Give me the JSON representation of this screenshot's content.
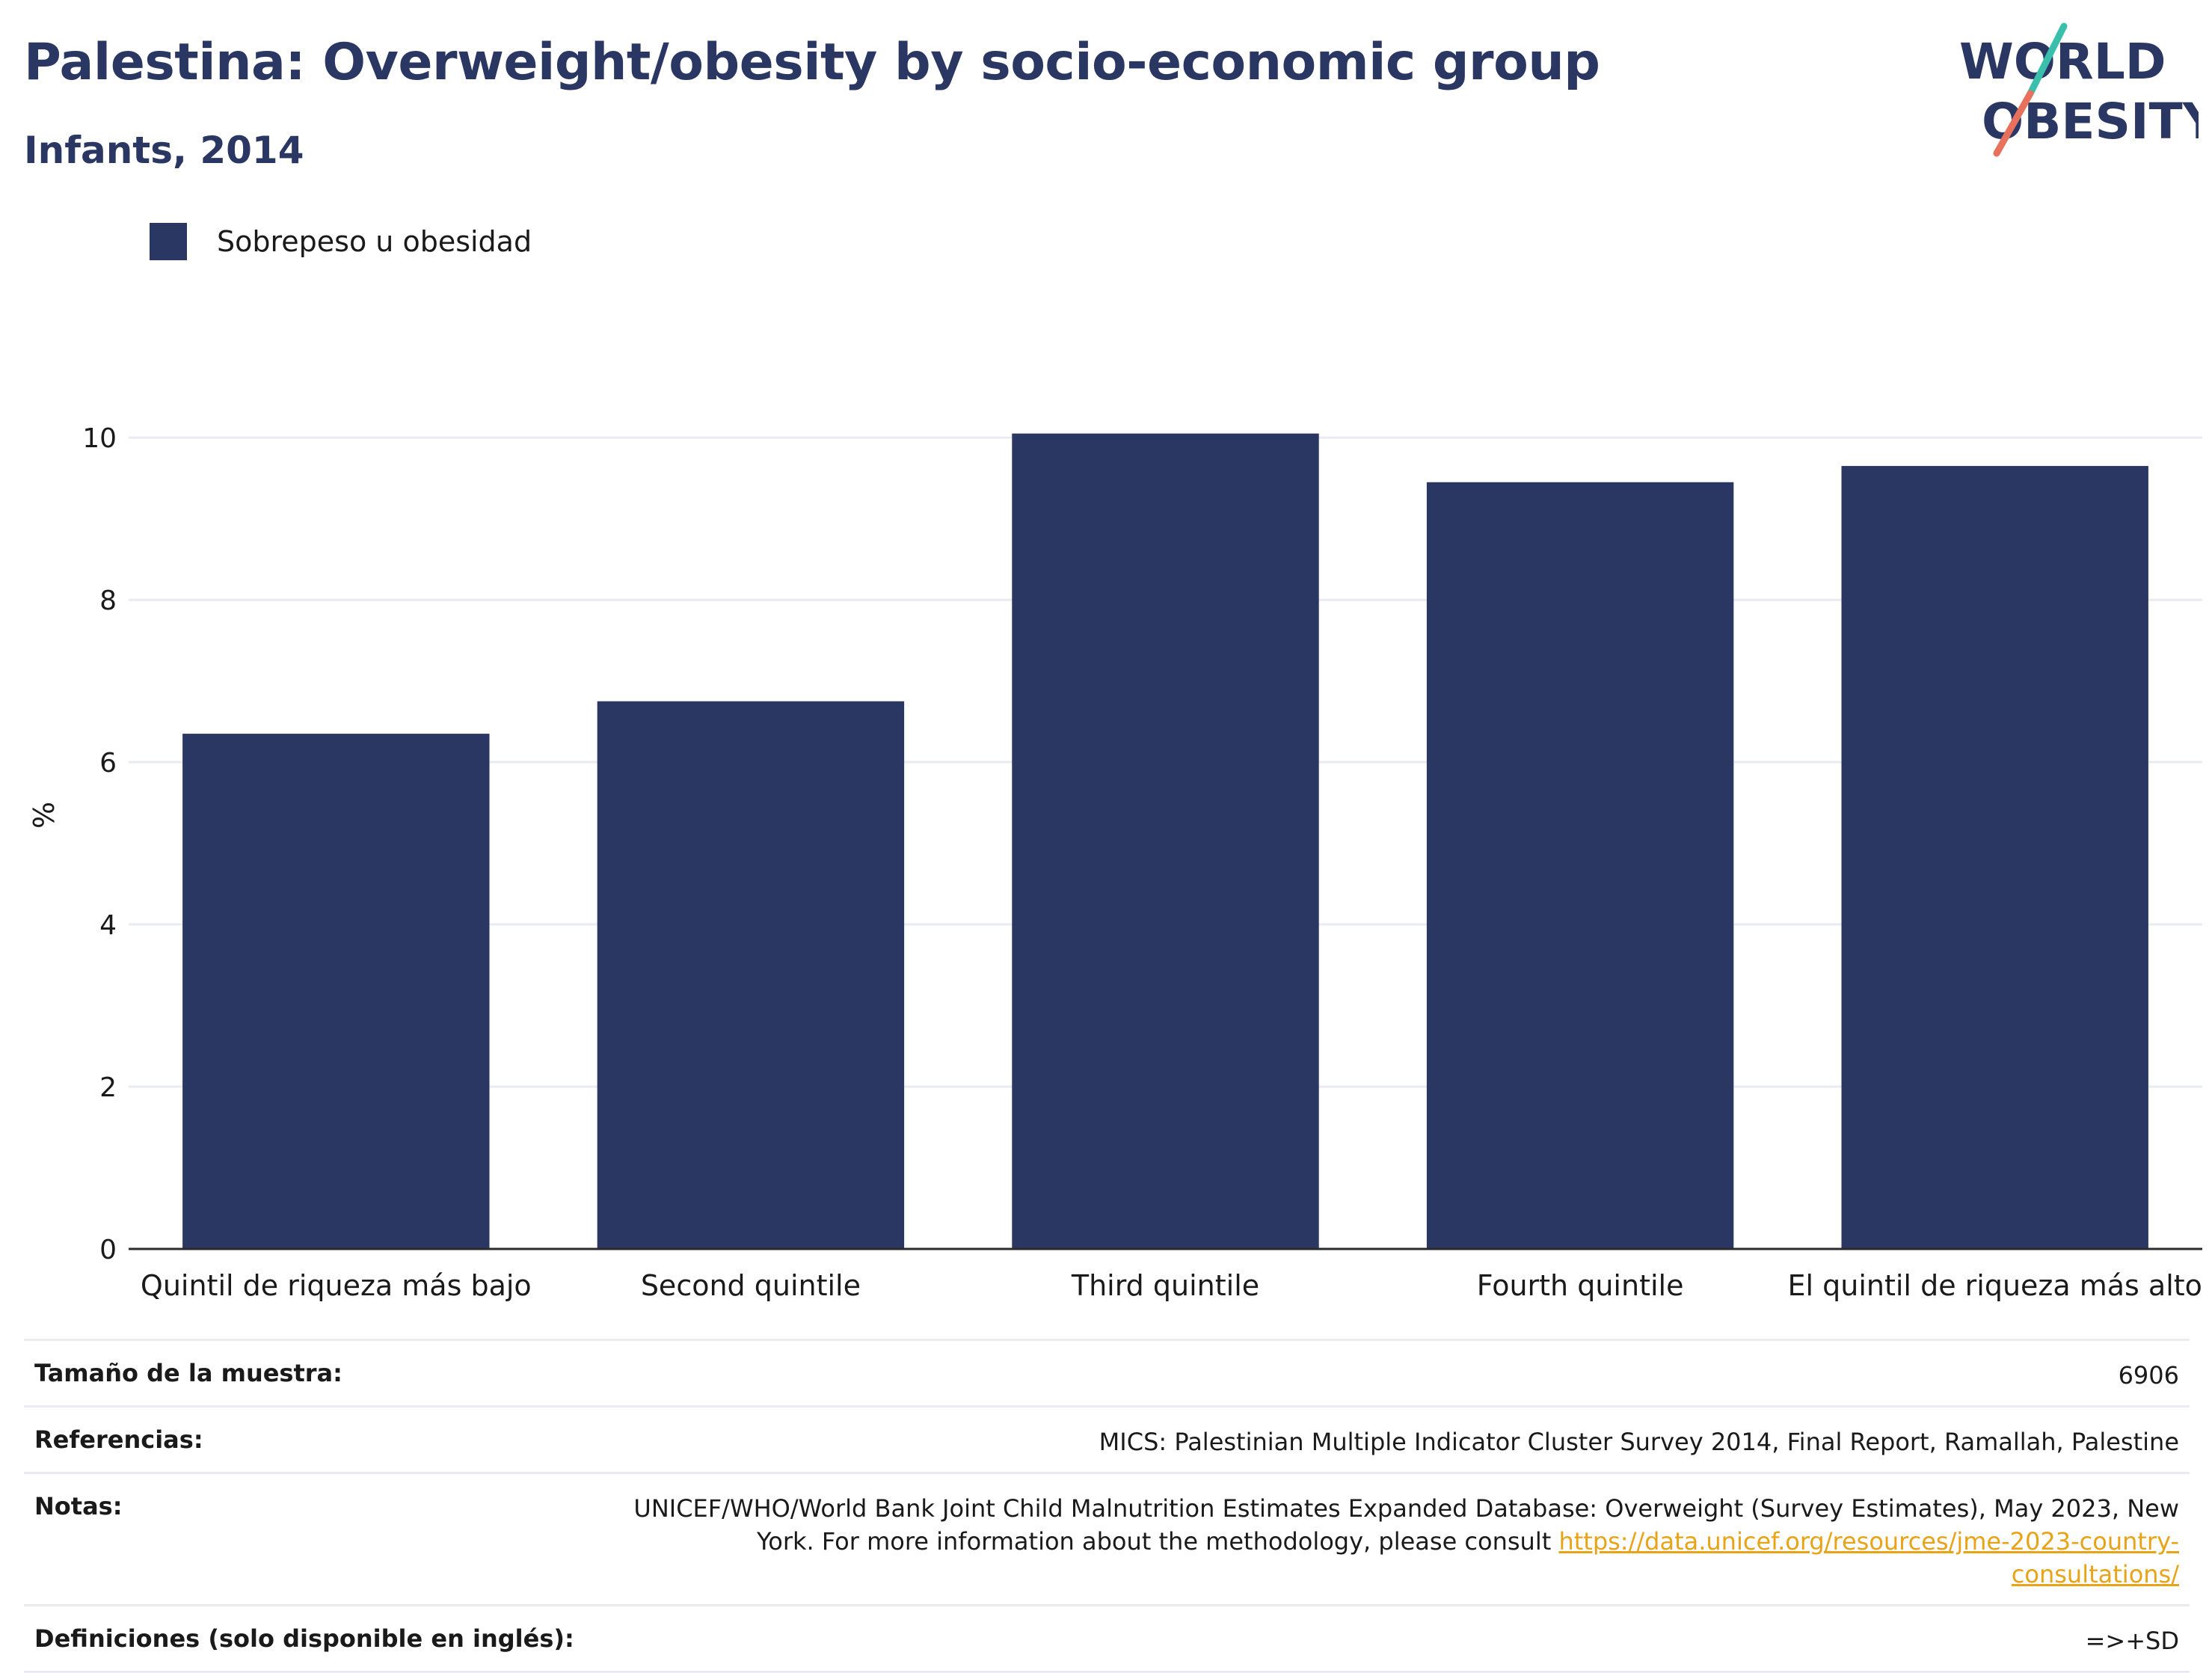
{
  "header": {
    "title": "Palestina: Overweight/obesity by socio-economic group",
    "subtitle": "Infants, 2014"
  },
  "logo": {
    "line1": "WORLD",
    "line2": "OBESITY",
    "colors": {
      "text": "#2b3763",
      "slash_top": "#3bbfad",
      "slash_bottom": "#e8715e"
    }
  },
  "legend": {
    "label": "Sobrepeso u obesidad",
    "color": "#2b3763"
  },
  "chart_data": {
    "type": "bar",
    "categories": [
      "Quintil de riqueza más bajo",
      "Second quintile",
      "Third quintile",
      "Fourth quintile",
      "El quintil de riqueza más alto"
    ],
    "series": [
      {
        "name": "Sobrepeso u obesidad",
        "values": [
          6.35,
          6.75,
          10.05,
          9.45,
          9.65
        ],
        "color": "#2b3763"
      }
    ],
    "title": "Palestina: Overweight/obesity by socio-economic group",
    "subtitle": "Infants, 2014",
    "xlabel": "",
    "ylabel": "%",
    "ylim": [
      0,
      10.6
    ],
    "yticks": [
      0,
      2,
      4,
      6,
      8,
      10
    ],
    "grid": true,
    "legend_position": "top-left"
  },
  "footer": {
    "sample_size": {
      "label": "Tamaño de la muestra:",
      "value": "6906"
    },
    "references": {
      "label": "Referencias:",
      "value": "MICS: Palestinian Multiple Indicator Cluster Survey 2014, Final Report, Ramallah, Palestine"
    },
    "notes": {
      "label": "Notas:",
      "text": "UNICEF/WHO/World Bank Joint Child Malnutrition Estimates Expanded Database: Overweight (Survey Estimates), May 2023, New York. For more information about the methodology, please consult ",
      "link": "https://data.unicef.org/resources/jme-2023-country-consultations/"
    },
    "definitions": {
      "label": "Definiciones (solo disponible en inglés):",
      "value": "=>+SD"
    }
  }
}
